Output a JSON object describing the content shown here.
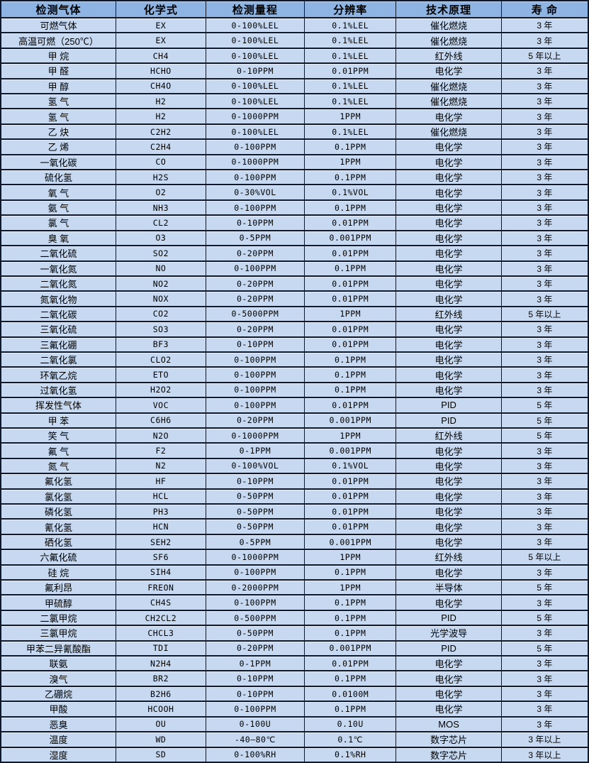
{
  "colors": {
    "header_bg": "#8db4e2",
    "row_bg": "#c6d9f1",
    "border": "#10192b",
    "text": "#000000"
  },
  "table": {
    "columns": [
      "检测气体",
      "化学式",
      "检测量程",
      "分辨率",
      "技术原理",
      "寿 命"
    ],
    "column_keys": [
      "gas-name",
      "chemical-formula",
      "detection-range",
      "resolution",
      "technology",
      "lifespan"
    ],
    "rows": [
      [
        "可燃气体",
        "EX",
        "0-100%LEL",
        "0.1%LEL",
        "催化燃烧",
        "3 年"
      ],
      [
        "高温可燃（250℃）",
        "EX",
        "0-100%LEL",
        "0.1%LEL",
        "催化燃烧",
        "3 年"
      ],
      [
        "甲 烷",
        "CH4",
        "0-100%LEL",
        "0.1%LEL",
        "红外线",
        "5 年以上"
      ],
      [
        "甲 醛",
        "HCHO",
        "0-10PPM",
        "0.01PPM",
        "电化学",
        "3 年"
      ],
      [
        "甲 醇",
        "CH4O",
        "0-100%LEL",
        "0.1%LEL",
        "催化燃烧",
        "3 年"
      ],
      [
        "氢 气",
        "H2",
        "0-100%LEL",
        "0.1%LEL",
        "催化燃烧",
        "3 年"
      ],
      [
        "氢 气",
        "H2",
        "0-1000PPM",
        "1PPM",
        "电化学",
        "3 年"
      ],
      [
        "乙 炔",
        "C2H2",
        "0-100%LEL",
        "0.1%LEL",
        "催化燃烧",
        "3 年"
      ],
      [
        "乙 烯",
        "C2H4",
        "0-100PPM",
        "0.1PPM",
        "电化学",
        "3 年"
      ],
      [
        "一氧化碳",
        "CO",
        "0-1000PPM",
        "1PPM",
        "电化学",
        "3 年"
      ],
      [
        "硫化氢",
        "H2S",
        "0-100PPM",
        "0.1PPM",
        "电化学",
        "3 年"
      ],
      [
        "氧 气",
        "O2",
        "0-30%VOL",
        "0.1%VOL",
        "电化学",
        "3 年"
      ],
      [
        "氨 气",
        "NH3",
        "0-100PPM",
        "0.1PPM",
        "电化学",
        "3 年"
      ],
      [
        "氯 气",
        "CL2",
        "0-10PPM",
        "0.01PPM",
        "电化学",
        "3 年"
      ],
      [
        "臭 氧",
        "O3",
        "0-5PPM",
        "0.001PPM",
        "电化学",
        "3 年"
      ],
      [
        "二氧化硫",
        "SO2",
        "0-20PPM",
        "0.01PPM",
        "电化学",
        "3 年"
      ],
      [
        "一氧化氮",
        "NO",
        "0-100PPM",
        "0.1PPM",
        "电化学",
        "3 年"
      ],
      [
        "二氧化氮",
        "NO2",
        "0-20PPM",
        "0.01PPM",
        "电化学",
        "3 年"
      ],
      [
        "氮氧化物",
        "NOX",
        "0-20PPM",
        "0.01PPM",
        "电化学",
        "3 年"
      ],
      [
        "二氧化碳",
        "CO2",
        "0-5000PPM",
        "1PPM",
        "红外线",
        "5 年以上"
      ],
      [
        "三氧化硫",
        "SO3",
        "0-20PPM",
        "0.01PPM",
        "电化学",
        "3 年"
      ],
      [
        "三氟化硼",
        "BF3",
        "0-10PPM",
        "0.01PPM",
        "电化学",
        "3 年"
      ],
      [
        "二氧化氯",
        "CLO2",
        "0-100PPM",
        "0.1PPM",
        "电化学",
        "3 年"
      ],
      [
        "环氧乙烷",
        "ETO",
        "0-100PPM",
        "0.1PPM",
        "电化学",
        "3 年"
      ],
      [
        "过氧化氢",
        "H2O2",
        "0-100PPM",
        "0.1PPM",
        "电化学",
        "3 年"
      ],
      [
        "挥发性气体",
        "VOC",
        "0-100PPM",
        "0.01PPM",
        "PID",
        "5 年"
      ],
      [
        "甲 苯",
        "C6H6",
        "0-20PPM",
        "0.001PPM",
        "PID",
        "5 年"
      ],
      [
        "笑 气",
        "N2O",
        "0-1000PPM",
        "1PPM",
        "红外线",
        "5 年"
      ],
      [
        "氟 气",
        "F2",
        "0-1PPM",
        "0.001PPM",
        "电化学",
        "3 年"
      ],
      [
        "氮 气",
        "N2",
        "0-100%VOL",
        "0.1%VOL",
        "电化学",
        "3 年"
      ],
      [
        "氟化氢",
        "HF",
        "0-10PPM",
        "0.01PPM",
        "电化学",
        "3 年"
      ],
      [
        "氯化氢",
        "HCL",
        "0-50PPM",
        "0.01PPM",
        "电化学",
        "3 年"
      ],
      [
        "磷化氢",
        "PH3",
        "0-50PPM",
        "0.01PPM",
        "电化学",
        "3 年"
      ],
      [
        "氰化氢",
        "HCN",
        "0-50PPM",
        "0.01PPM",
        "电化学",
        "3 年"
      ],
      [
        "硒化氢",
        "SEH2",
        "0-5PPM",
        "0.001PPM",
        "电化学",
        "3 年"
      ],
      [
        "六氟化硫",
        "SF6",
        "0-1000PPM",
        "1PPM",
        "红外线",
        "5 年以上"
      ],
      [
        "硅 烷",
        "SIH4",
        "0-100PPM",
        "0.1PPM",
        "电化学",
        "3 年"
      ],
      [
        "氟利昂",
        "FREON",
        "0-2000PPM",
        "1PPM",
        "半导体",
        "5 年"
      ],
      [
        "甲硫醇",
        "CH4S",
        "0-100PPM",
        "0.1PPM",
        "电化学",
        "3 年"
      ],
      [
        "二氯甲烷",
        "CH2CL2",
        "0-500PPM",
        "0.1PPM",
        "PID",
        "5 年"
      ],
      [
        "三氯甲烷",
        "CHCL3",
        "0-50PPM",
        "0.1PPM",
        "光学波导",
        "3 年"
      ],
      [
        "甲苯二异氰酸酯",
        "TDI",
        "0-20PPM",
        "0.001PPM",
        "PID",
        "5 年"
      ],
      [
        "联氨",
        "N2H4",
        "0-1PPM",
        "0.01PPM",
        "电化学",
        "3 年"
      ],
      [
        "溴气",
        "BR2",
        "0-10PPM",
        "0.1PPM",
        "电化学",
        "3 年"
      ],
      [
        "乙硼烷",
        "B2H6",
        "0-10PPM",
        "0.0100M",
        "电化学",
        "3 年"
      ],
      [
        "甲酸",
        "HCOOH",
        "0-100PPM",
        "0.1PPM",
        "电化学",
        "3 年"
      ],
      [
        "恶臭",
        "OU",
        "0-100U",
        "0.10U",
        "MOS",
        "3 年"
      ],
      [
        "温度",
        "WD",
        "-40—80℃",
        "0.1℃",
        "数字芯片",
        "3 年以上"
      ],
      [
        "湿度",
        "SD",
        "0-100%RH",
        "0.1%RH",
        "数字芯片",
        "3 年以上"
      ]
    ]
  }
}
